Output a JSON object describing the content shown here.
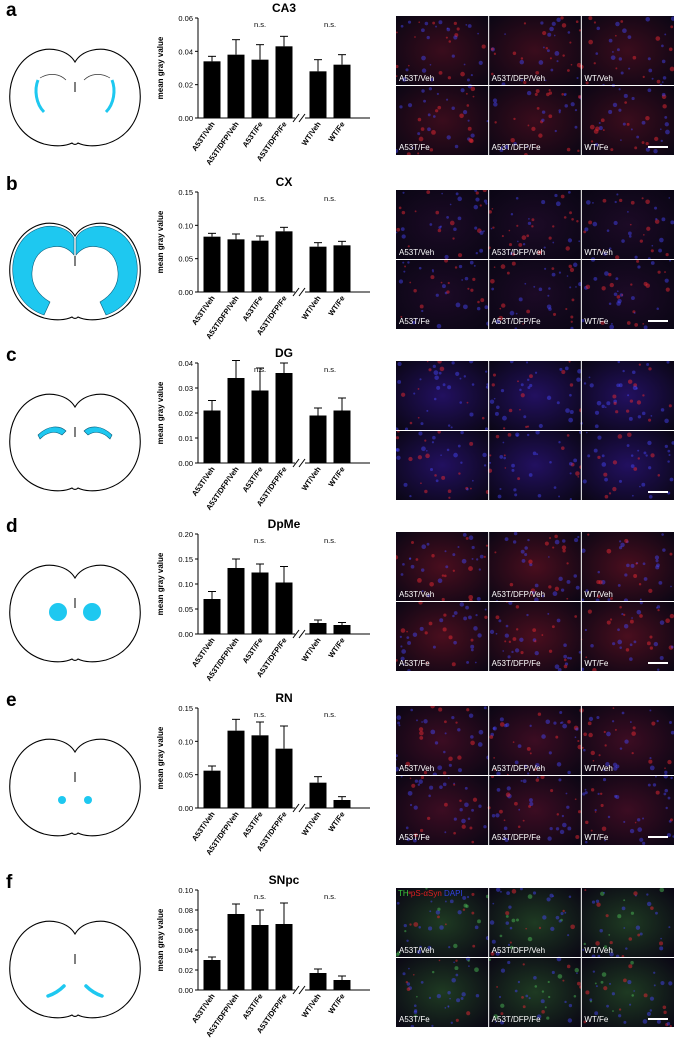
{
  "figure": {
    "ylabel": "mean gray value",
    "ns_label": "n.s.",
    "tile_labels": [
      "A53T/Veh",
      "A53T/DFP/Veh",
      "WT/Veh",
      "A53T/Fe",
      "A53T/DFP/Fe",
      "WT/Fe"
    ],
    "stain_legend": {
      "th": "TH",
      "psyn": "pS-αSyn",
      "dapi": "DAPI",
      "colors": {
        "th": "#3cc83c",
        "psyn": "#e02020",
        "dapi": "#3040e0"
      }
    },
    "colors": {
      "region_fill": "#1ec8f0",
      "bar": "#000000",
      "brain_outline": "#000000"
    }
  },
  "panels": [
    {
      "letter": "a",
      "region": "CA3",
      "brain_highlight": "ca3-icon",
      "show_tile_labels": true,
      "show_stain_legend": false,
      "tint": "#3a0c1c",
      "chart_data": {
        "type": "bar",
        "title": "CA3",
        "ylabel": "mean gray value",
        "categories": [
          "A53T/Veh",
          "A53T/DFP/Veh",
          "A53T/Fe",
          "A53T/DFP/Fe",
          "WT/Veh",
          "WT/Fe"
        ],
        "values": [
          0.034,
          0.038,
          0.035,
          0.043,
          0.028,
          0.032
        ],
        "errors": [
          0.003,
          0.009,
          0.009,
          0.006,
          0.007,
          0.006
        ],
        "ylim": [
          0,
          0.06
        ],
        "yticks": [
          "0.00",
          "0.02",
          "0.04",
          "0.06"
        ],
        "annotations": [
          "n.s.",
          "n.s."
        ]
      }
    },
    {
      "letter": "b",
      "region": "CX",
      "brain_highlight": "cortex-icon",
      "show_tile_labels": true,
      "show_stain_legend": false,
      "tint": "#1c0a26",
      "chart_data": {
        "type": "bar",
        "title": "CX",
        "ylabel": "mean gray value",
        "categories": [
          "A53T/Veh",
          "A53T/DFP/Veh",
          "A53T/Fe",
          "A53T/DFP/Fe",
          "WT/Veh",
          "WT/Fe"
        ],
        "values": [
          0.083,
          0.079,
          0.077,
          0.091,
          0.068,
          0.07
        ],
        "errors": [
          0.005,
          0.008,
          0.007,
          0.006,
          0.006,
          0.006
        ],
        "ylim": [
          0,
          0.15
        ],
        "yticks": [
          "0.00",
          "0.05",
          "0.10",
          "0.15"
        ],
        "annotations": [
          "n.s.",
          "n.s."
        ]
      }
    },
    {
      "letter": "c",
      "region": "DG",
      "brain_highlight": "dg-icon",
      "show_tile_labels": false,
      "show_stain_legend": false,
      "tint": "#221060",
      "chart_data": {
        "type": "bar",
        "title": "DG",
        "ylabel": "mean gray value",
        "categories": [
          "A53T/Veh",
          "A53T/DFP/Veh",
          "A53T/Fe",
          "A53T/DFP/Fe",
          "WT/Veh",
          "WT/Fe"
        ],
        "values": [
          0.021,
          0.034,
          0.029,
          0.036,
          0.019,
          0.021
        ],
        "errors": [
          0.004,
          0.007,
          0.009,
          0.004,
          0.003,
          0.005
        ],
        "ylim": [
          0,
          0.04
        ],
        "yticks": [
          "0.00",
          "0.01",
          "0.02",
          "0.03",
          "0.04"
        ],
        "annotations": [
          "n.s.",
          "n.s."
        ]
      }
    },
    {
      "letter": "d",
      "region": "DpMe",
      "brain_highlight": "dpme-icon",
      "show_tile_labels": true,
      "show_stain_legend": false,
      "tint": "#4a0e1e",
      "chart_data": {
        "type": "bar",
        "title": "DpMe",
        "ylabel": "mean gray value",
        "categories": [
          "A53T/Veh",
          "A53T/DFP/Veh",
          "A53T/Fe",
          "A53T/DFP/Fe",
          "WT/Veh",
          "WT/Fe"
        ],
        "values": [
          0.07,
          0.132,
          0.123,
          0.103,
          0.022,
          0.018
        ],
        "errors": [
          0.015,
          0.018,
          0.017,
          0.032,
          0.006,
          0.005
        ],
        "ylim": [
          0,
          0.2
        ],
        "yticks": [
          "0.00",
          "0.05",
          "0.10",
          "0.15",
          "0.20"
        ],
        "annotations": [
          "n.s.",
          "n.s."
        ]
      }
    },
    {
      "letter": "e",
      "region": "RN",
      "brain_highlight": "rn-icon",
      "show_tile_labels": true,
      "show_stain_legend": false,
      "tint": "#3c0c22",
      "chart_data": {
        "type": "bar",
        "title": "RN",
        "ylabel": "mean gray value",
        "categories": [
          "A53T/Veh",
          "A53T/DFP/Veh",
          "A53T/Fe",
          "A53T/DFP/Fe",
          "WT/Veh",
          "WT/Fe"
        ],
        "values": [
          0.056,
          0.116,
          0.109,
          0.089,
          0.038,
          0.012
        ],
        "errors": [
          0.007,
          0.017,
          0.02,
          0.034,
          0.009,
          0.005
        ],
        "ylim": [
          0,
          0.15
        ],
        "yticks": [
          "0.00",
          "0.05",
          "0.10",
          "0.15"
        ],
        "annotations": [
          "n.s.",
          "n.s."
        ]
      }
    },
    {
      "letter": "f",
      "region": "SNpc",
      "brain_highlight": "snpc-icon",
      "show_tile_labels": true,
      "show_stain_legend": true,
      "tint": "#1e3a22",
      "chart_data": {
        "type": "bar",
        "title": "SNpc",
        "ylabel": "mean gray value",
        "categories": [
          "A53T/Veh",
          "A53T/DFP/Veh",
          "A53T/Fe",
          "A53T/DFP/Fe",
          "WT/Veh",
          "WT/Fe"
        ],
        "values": [
          0.03,
          0.076,
          0.065,
          0.066,
          0.017,
          0.01
        ],
        "errors": [
          0.003,
          0.01,
          0.015,
          0.021,
          0.004,
          0.004
        ],
        "ylim": [
          0,
          0.1
        ],
        "yticks": [
          "0.00",
          "0.02",
          "0.04",
          "0.06",
          "0.08",
          "0.10"
        ],
        "annotations": [
          "n.s.",
          "n.s."
        ]
      }
    }
  ]
}
